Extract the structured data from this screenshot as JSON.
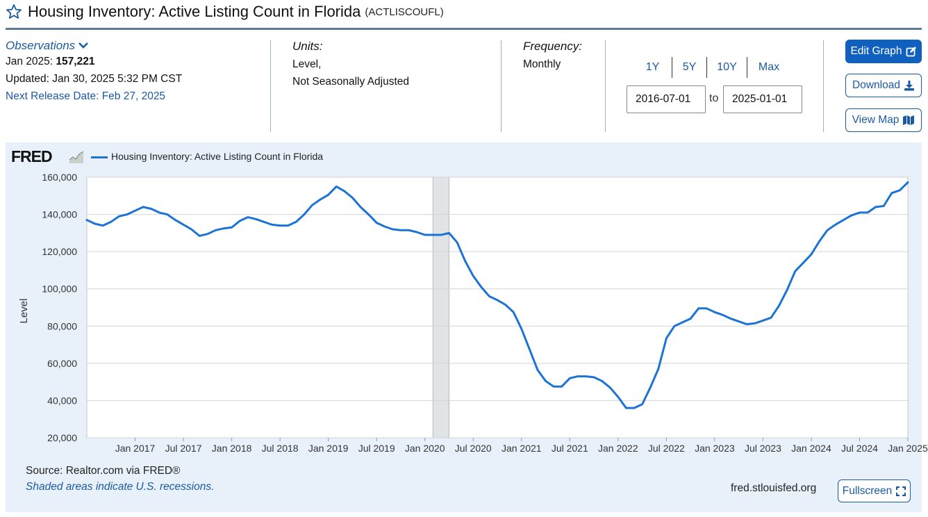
{
  "header": {
    "title": "Housing Inventory: Active Listing Count in Florida",
    "series_id": "(ACTLISCOUFL)"
  },
  "observations": {
    "heading": "Observations",
    "latest_label": "Jan 2025:",
    "latest_value": "157,221",
    "updated": "Updated: Jan 30, 2025 5:32 PM CST",
    "next_release": "Next Release Date: Feb 27, 2025"
  },
  "units": {
    "heading": "Units:",
    "line1": "Level,",
    "line2": "Not Seasonally Adjusted"
  },
  "frequency": {
    "heading": "Frequency:",
    "value": "Monthly"
  },
  "range": {
    "options": [
      "1Y",
      "5Y",
      "10Y",
      "Max"
    ],
    "start": "2016-07-01",
    "to_label": "to",
    "end": "2025-01-01"
  },
  "buttons": {
    "edit": "Edit Graph",
    "download": "Download",
    "map": "View Map",
    "fullscreen": "Fullscreen"
  },
  "footer": {
    "source": "Source: Realtor.com via FRED®",
    "shaded": "Shaded areas indicate U.S. recessions.",
    "url": "fred.stlouisfed.org"
  },
  "logo_text": "FRED",
  "colors": {
    "line": "#1a73d5",
    "accent": "#1060c0",
    "link": "#1a5aa3",
    "panel": "#e8f1f9",
    "recession": "#e1e4e7"
  },
  "chart_data": {
    "type": "line",
    "title": "Housing Inventory: Active Listing Count in Florida",
    "ylabel": "Level",
    "xlabel": "",
    "ylim": [
      20000,
      160000
    ],
    "yticks": [
      20000,
      40000,
      60000,
      80000,
      100000,
      120000,
      140000,
      160000
    ],
    "ytick_labels": [
      "20,000",
      "40,000",
      "60,000",
      "80,000",
      "100,000",
      "120,000",
      "140,000",
      "160,000"
    ],
    "x_start": "2016-07",
    "x_end": "2025-01",
    "xticks": [
      {
        "label": "Jan 2017",
        "m": 6
      },
      {
        "label": "Jul 2017",
        "m": 12
      },
      {
        "label": "Jan 2018",
        "m": 18
      },
      {
        "label": "Jul 2018",
        "m": 24
      },
      {
        "label": "Jan 2019",
        "m": 30
      },
      {
        "label": "Jul 2019",
        "m": 36
      },
      {
        "label": "Jan 2020",
        "m": 42
      },
      {
        "label": "Jul 2020",
        "m": 48
      },
      {
        "label": "Jan 2021",
        "m": 54
      },
      {
        "label": "Jul 2021",
        "m": 60
      },
      {
        "label": "Jan 2022",
        "m": 66
      },
      {
        "label": "Jul 2022",
        "m": 72
      },
      {
        "label": "Jan 2023",
        "m": 78
      },
      {
        "label": "Jul 2023",
        "m": 84
      },
      {
        "label": "Jan 2024",
        "m": 90
      },
      {
        "label": "Jul 2024",
        "m": 96
      },
      {
        "label": "Jan 2025",
        "m": 102
      }
    ],
    "recession": {
      "start_m": 43,
      "end_m": 45
    },
    "legend": "top-left",
    "grid": true,
    "series": [
      {
        "name": "Housing Inventory: Active Listing Count in Florida",
        "values": [
          137000,
          135000,
          134000,
          136000,
          139000,
          140000,
          142000,
          144000,
          143000,
          141000,
          140000,
          137000,
          134500,
          132000,
          128500,
          129500,
          131500,
          132500,
          133000,
          136500,
          138500,
          137500,
          136000,
          134500,
          134000,
          134000,
          136000,
          140000,
          145000,
          148000,
          150500,
          155000,
          152500,
          149000,
          144000,
          140000,
          135500,
          133500,
          132000,
          131500,
          131500,
          130500,
          129000,
          129000,
          129000,
          130000,
          125000,
          115000,
          107000,
          101000,
          96000,
          94000,
          91500,
          87500,
          78500,
          67500,
          56500,
          50500,
          47500,
          47500,
          52000,
          53000,
          53000,
          52500,
          50500,
          47000,
          42000,
          36000,
          36000,
          38000,
          47000,
          57000,
          73500,
          80000,
          82000,
          84000,
          89500,
          89500,
          87500,
          86000,
          84000,
          82500,
          81000,
          81500,
          83000,
          84500,
          91000,
          99500,
          109500,
          114000,
          118500,
          125500,
          131500,
          134500,
          137000,
          139500,
          141000,
          141000,
          144000,
          144500,
          151500,
          153000,
          157221
        ]
      }
    ]
  }
}
